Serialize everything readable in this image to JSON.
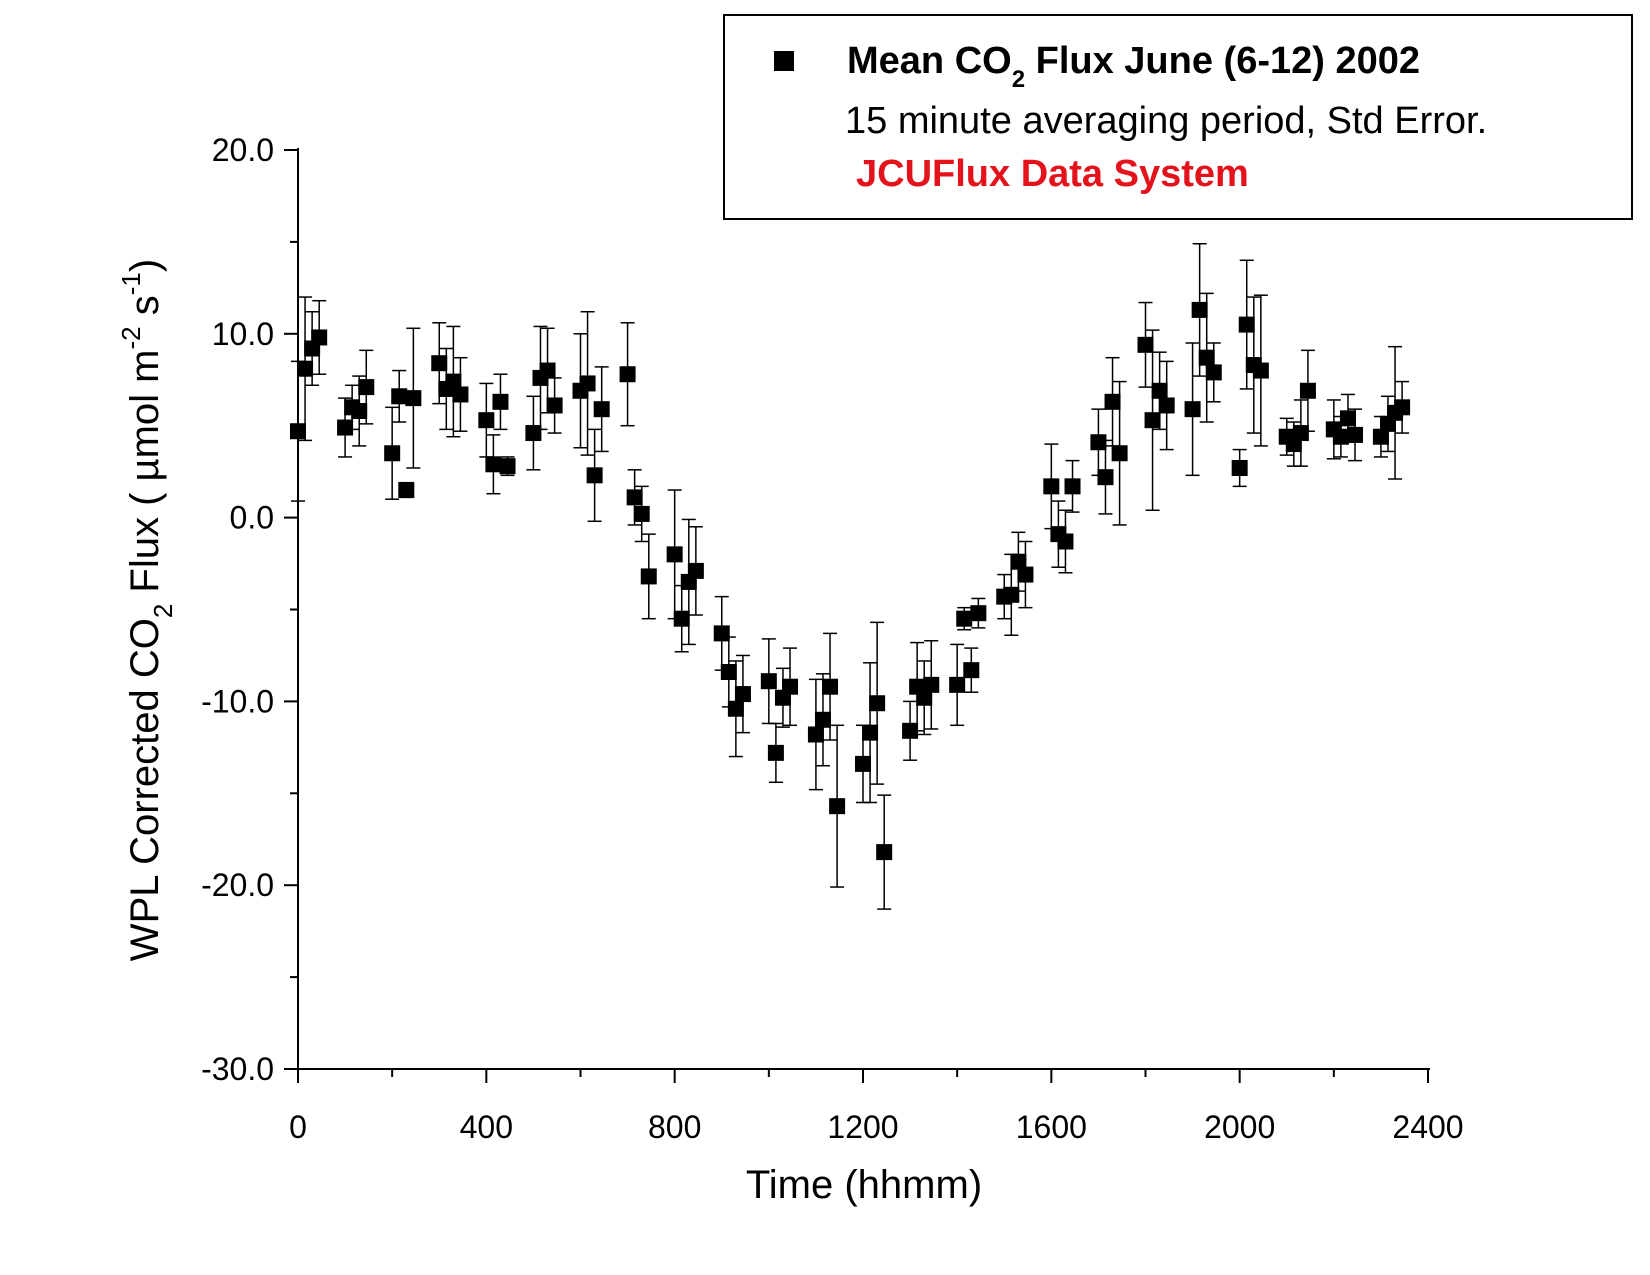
{
  "chart_data": {
    "type": "scatter",
    "title": "",
    "xlabel": "Time (hhmm)",
    "ylabel": {
      "part1": "WPL Corrected CO",
      "sub1": "2",
      "part2": " Flux ( ",
      "mu": "µ",
      "part3": "mol m",
      "sup1": "-2",
      "part4": " s",
      "sup2": "-1",
      "part5": ")"
    },
    "xlim": [
      0,
      2400
    ],
    "ylim": [
      -30,
      20
    ],
    "x_ticks": [
      "0",
      "400",
      "800",
      "1200",
      "1600",
      "2000",
      "2400"
    ],
    "y_ticks": [
      "20.0",
      "10.0",
      "0.0",
      "-10.0",
      "-20.0",
      "-30.0"
    ],
    "grid": false,
    "legend": {
      "position": "top-right",
      "series_label_pre": "Mean CO",
      "series_label_sub": "2",
      "series_label_post": " Flux June (6-12) 2002",
      "line2": "15 minute averaging period, Std Error.",
      "line3": "JCUFlux Data System",
      "line3_color": "#e3121b"
    },
    "marker_color": "#000000",
    "error_bar_color": "#000000",
    "series": [
      {
        "points": [
          [
            0,
            4.7,
            3.8
          ],
          [
            15,
            8.1,
            3.9
          ],
          [
            30,
            9.2,
            2.0
          ],
          [
            45,
            9.8,
            2.0
          ],
          [
            100,
            4.9,
            1.6
          ],
          [
            115,
            6.0,
            1.2
          ],
          [
            130,
            5.8,
            1.9
          ],
          [
            145,
            7.1,
            2.0
          ],
          [
            200,
            3.5,
            2.5
          ],
          [
            215,
            6.6,
            1.4
          ],
          [
            230,
            1.5,
            0.4
          ],
          [
            245,
            6.5,
            3.8
          ],
          [
            300,
            8.4,
            2.2
          ],
          [
            315,
            7.0,
            2.2
          ],
          [
            330,
            7.4,
            3.0
          ],
          [
            345,
            6.7,
            2.0
          ],
          [
            400,
            5.3,
            2.0
          ],
          [
            415,
            2.9,
            1.6
          ],
          [
            430,
            6.3,
            1.5
          ],
          [
            445,
            2.8,
            0.5
          ],
          [
            500,
            4.6,
            2.0
          ],
          [
            515,
            7.6,
            2.8
          ],
          [
            530,
            8.0,
            2.3
          ],
          [
            545,
            6.1,
            1.5
          ],
          [
            600,
            6.9,
            3.1
          ],
          [
            615,
            7.3,
            3.9
          ],
          [
            630,
            2.3,
            2.5
          ],
          [
            645,
            5.9,
            2.3
          ],
          [
            700,
            7.8,
            2.8
          ],
          [
            715,
            1.1,
            1.5
          ],
          [
            730,
            0.2,
            1.5
          ],
          [
            745,
            -3.2,
            2.3
          ],
          [
            800,
            -2.0,
            3.5
          ],
          [
            815,
            -5.5,
            1.8
          ],
          [
            830,
            -3.5,
            3.4
          ],
          [
            845,
            -2.9,
            2.4
          ],
          [
            900,
            -6.3,
            2.0
          ],
          [
            915,
            -8.4,
            1.9
          ],
          [
            930,
            -10.4,
            2.6
          ],
          [
            945,
            -9.6,
            2.1
          ],
          [
            1000,
            -8.9,
            2.3
          ],
          [
            1015,
            -12.8,
            1.6
          ],
          [
            1030,
            -9.8,
            1.6
          ],
          [
            1045,
            -9.2,
            2.1
          ],
          [
            1100,
            -11.8,
            3.0
          ],
          [
            1115,
            -11.0,
            2.5
          ],
          [
            1130,
            -9.2,
            2.9
          ],
          [
            1145,
            -15.7,
            4.4
          ],
          [
            1200,
            -13.4,
            2.1
          ],
          [
            1215,
            -11.7,
            3.8
          ],
          [
            1230,
            -10.1,
            4.4
          ],
          [
            1245,
            -18.2,
            3.1
          ],
          [
            1300,
            -11.6,
            1.6
          ],
          [
            1315,
            -9.2,
            2.4
          ],
          [
            1330,
            -9.8,
            2.0
          ],
          [
            1345,
            -9.1,
            2.4
          ],
          [
            1400,
            -9.1,
            2.2
          ],
          [
            1415,
            -5.5,
            0.6
          ],
          [
            1430,
            -8.3,
            1.2
          ],
          [
            1445,
            -5.2,
            0.8
          ],
          [
            1500,
            -4.3,
            1.2
          ],
          [
            1515,
            -4.2,
            2.2
          ],
          [
            1530,
            -2.4,
            1.6
          ],
          [
            1545,
            -3.1,
            1.8
          ],
          [
            1600,
            1.7,
            2.3
          ],
          [
            1615,
            -0.9,
            1.8
          ],
          [
            1630,
            -1.3,
            1.7
          ],
          [
            1645,
            1.7,
            1.4
          ],
          [
            1700,
            4.1,
            1.8
          ],
          [
            1715,
            2.2,
            2.0
          ],
          [
            1730,
            6.3,
            2.4
          ],
          [
            1745,
            3.5,
            3.9
          ],
          [
            1800,
            9.4,
            2.3
          ],
          [
            1815,
            5.3,
            4.9
          ],
          [
            1830,
            6.9,
            2.1
          ],
          [
            1845,
            6.1,
            2.4
          ],
          [
            1900,
            5.9,
            3.6
          ],
          [
            1915,
            11.3,
            3.6
          ],
          [
            1930,
            8.7,
            3.5
          ],
          [
            1945,
            7.9,
            1.6
          ],
          [
            2000,
            2.7,
            1.0
          ],
          [
            2015,
            10.5,
            3.5
          ],
          [
            2030,
            8.3,
            3.7
          ],
          [
            2045,
            8.0,
            4.1
          ],
          [
            2100,
            4.4,
            1.0
          ],
          [
            2115,
            4.0,
            1.2
          ],
          [
            2130,
            4.6,
            1.8
          ],
          [
            2145,
            6.9,
            2.2
          ],
          [
            2200,
            4.8,
            1.6
          ],
          [
            2215,
            4.4,
            1.1
          ],
          [
            2230,
            5.4,
            1.3
          ],
          [
            2245,
            4.5,
            1.4
          ],
          [
            2300,
            4.4,
            1.1
          ],
          [
            2315,
            5.1,
            1.5
          ],
          [
            2330,
            5.7,
            3.6
          ],
          [
            2345,
            6.0,
            1.4
          ]
        ]
      }
    ]
  }
}
